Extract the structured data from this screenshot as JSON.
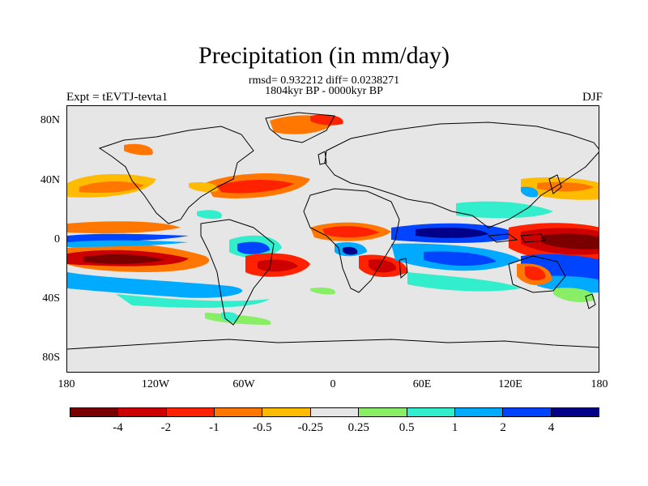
{
  "title": "Precipitation (in mm/day)",
  "stats": "rmsd= 0.932212  diff= 0.0238271",
  "period": "1804kyr BP - 0000kyr BP",
  "experiment": "Expt = tEVTJ-tevta1",
  "season": "DJF",
  "y_axis_labels": [
    "80N",
    "40N",
    "0",
    "40S",
    "80S"
  ],
  "x_axis_labels": [
    "180",
    "120W",
    "60W",
    "0",
    "60E",
    "120E",
    "180"
  ],
  "legend": {
    "colors": [
      "#7a0000",
      "#cc0000",
      "#ff2200",
      "#ff7700",
      "#ffbb00",
      "#e6e6e6",
      "#88ee66",
      "#33eecc",
      "#00aaff",
      "#0044ff",
      "#000088"
    ],
    "tick_labels": [
      "-4",
      "-2",
      "-1",
      "-0.5",
      "-0.25",
      "0.25",
      "0.5",
      "1",
      "2",
      "4"
    ]
  }
}
